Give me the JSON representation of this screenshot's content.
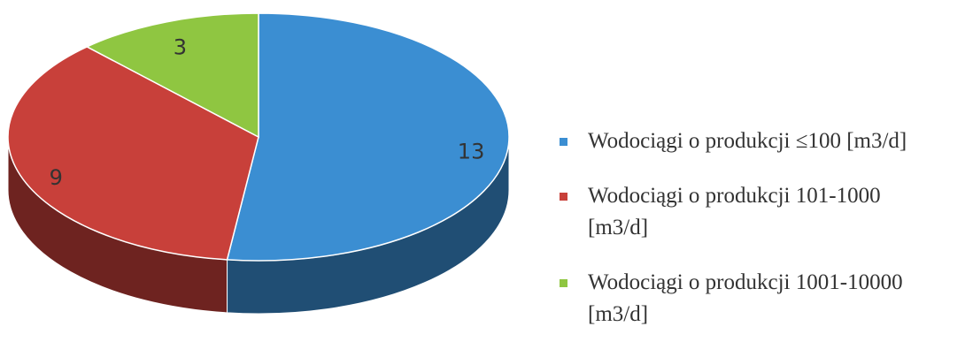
{
  "chart_data": {
    "type": "pie",
    "categories": [
      "Wodociągi o produkcji ≤100 [m3/d]",
      "Wodociągi o produkcji 101-1000 [m3/d]",
      "Wodociągi o produkcji 1001-10000 [m3/d]"
    ],
    "values": [
      13,
      9,
      3
    ],
    "colors": [
      "#3b8ed2",
      "#c8403a",
      "#8fc641"
    ],
    "legend": "right"
  }
}
